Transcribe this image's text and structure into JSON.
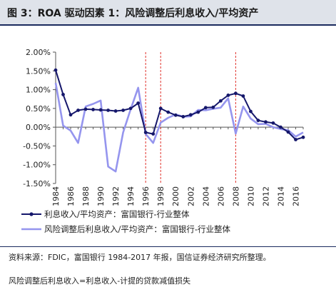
{
  "header": {
    "title": "图 3：ROA 驱动因素 1：风险调整后利息收入/平均资产"
  },
  "chart_data": {
    "type": "line",
    "title": "",
    "xlabel": "",
    "ylabel": "",
    "x": [
      1984,
      1985,
      1986,
      1987,
      1988,
      1989,
      1990,
      1991,
      1992,
      1993,
      1994,
      1995,
      1996,
      1997,
      1998,
      1999,
      2000,
      2001,
      2002,
      2003,
      2004,
      2005,
      2006,
      2007,
      2008,
      2009,
      2010,
      2011,
      2012,
      2013,
      2014,
      2015,
      2016,
      2017
    ],
    "x_tick_labels": [
      "1984",
      "1986",
      "1988",
      "1990",
      "1992",
      "1994",
      "1996",
      "1998",
      "2000",
      "2002",
      "2004",
      "2006",
      "2008",
      "2010",
      "2012",
      "2014",
      "2016"
    ],
    "ylim": [
      -1.5,
      2.0
    ],
    "y_ticks": [
      -1.5,
      -1.0,
      -0.5,
      0.0,
      0.5,
      1.0,
      1.5,
      2.0
    ],
    "y_tick_labels": [
      "-1.50%",
      "-1.00%",
      "-0.50%",
      "0.00%",
      "0.50%",
      "1.00%",
      "1.50%",
      "2.00%"
    ],
    "vlines": [
      1996,
      1998,
      2008
    ],
    "grid": false,
    "legend_position": "bottom",
    "series": [
      {
        "name": "利息收入/平均资产：富国银行-行业整体",
        "color": "#15176b",
        "marker": "circle",
        "values": [
          1.52,
          0.87,
          0.33,
          0.45,
          0.48,
          0.47,
          0.46,
          0.45,
          0.43,
          0.45,
          0.5,
          0.64,
          -0.14,
          -0.18,
          0.5,
          0.4,
          0.32,
          0.28,
          0.33,
          0.4,
          0.52,
          0.53,
          0.7,
          0.85,
          0.9,
          0.83,
          0.42,
          0.18,
          0.14,
          0.11,
          0.0,
          -0.13,
          -0.33,
          -0.27
        ]
      },
      {
        "name": "风险调整后利息收入/平均资产：富国银行-行业整体",
        "color": "#9595ee",
        "marker": "none",
        "values": [
          1.18,
          0.04,
          -0.09,
          -0.42,
          0.55,
          0.62,
          0.71,
          -1.05,
          -1.18,
          -0.14,
          0.48,
          1.05,
          -0.18,
          -0.42,
          0.12,
          0.25,
          0.34,
          0.28,
          0.29,
          0.46,
          0.45,
          0.49,
          0.52,
          0.77,
          -0.17,
          0.55,
          0.23,
          0.08,
          0.09,
          0.0,
          -0.05,
          -0.08,
          -0.25,
          -0.14
        ]
      }
    ]
  },
  "footer": {
    "source": "资料来源：FDIC，富国银行 1984-2017 年报，国信证券经济研究所整理。",
    "note": "风险调整后利息收入=利息收入-计提的贷款减值损失"
  }
}
